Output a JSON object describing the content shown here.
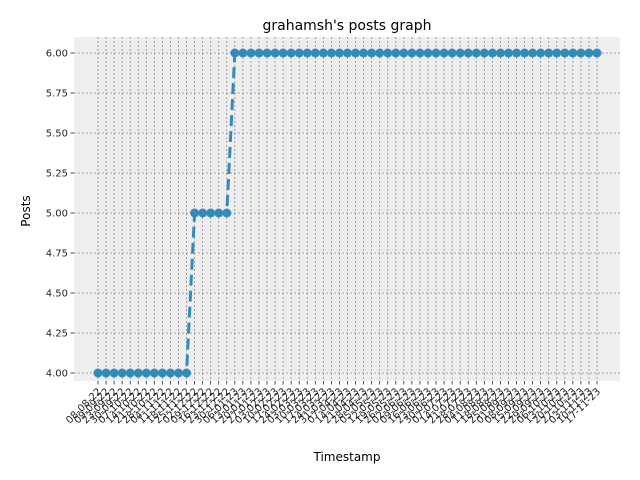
{
  "chart_data": {
    "type": "line",
    "title": "grahamsh's posts graph",
    "xlabel": "Timestamp",
    "ylabel": "Posts",
    "ylim": [
      3.95,
      6.1
    ],
    "yticks": [
      4.0,
      4.25,
      4.5,
      4.75,
      5.0,
      5.25,
      5.5,
      5.75,
      6.0
    ],
    "grid": true,
    "style": {
      "line_color": "#348abd",
      "background": "#eeeeee",
      "grid_color": "#8c8c8c",
      "line_style": "dashed",
      "marker": "circle"
    },
    "categories": [
      "08-08-22",
      "09-09-22",
      "23-09-22",
      "30-09-22",
      "07-10-22",
      "14-10-22",
      "21-10-22",
      "28-10-22",
      "04-11-22",
      "11-11-22",
      "18-11-22",
      "25-11-22",
      "02-12-22",
      "09-12-22",
      "16-12-22",
      "23-12-22",
      "30-12-22",
      "06-01-23",
      "13-01-23",
      "20-01-23",
      "27-01-23",
      "03-02-23",
      "10-02-23",
      "17-02-23",
      "24-02-23",
      "03-03-23",
      "10-03-23",
      "17-03-23",
      "24-03-23",
      "31-03-23",
      "07-04-23",
      "14-04-23",
      "21-04-23",
      "28-04-23",
      "05-05-23",
      "12-05-23",
      "19-05-23",
      "26-05-23",
      "02-06-23",
      "09-06-23",
      "16-06-23",
      "23-06-23",
      "30-06-23",
      "07-07-23",
      "14-07-23",
      "21-07-23",
      "28-07-23",
      "04-08-23",
      "11-08-23",
      "18-08-23",
      "25-08-23",
      "01-09-23",
      "08-09-23",
      "15-09-23",
      "22-09-23",
      "29-09-23",
      "06-10-23",
      "13-10-23",
      "20-10-23",
      "27-10-23",
      "03-11-23",
      "10-11-23",
      "17-11-23"
    ],
    "series": [
      {
        "values": [
          4,
          4,
          4,
          4,
          4,
          4,
          4,
          4,
          4,
          4,
          4,
          4,
          5,
          5,
          5,
          5,
          5,
          6,
          6,
          6,
          6,
          6,
          6,
          6,
          6,
          6,
          6,
          6,
          6,
          6,
          6,
          6,
          6,
          6,
          6,
          6,
          6,
          6,
          6,
          6,
          6,
          6,
          6,
          6,
          6,
          6,
          6,
          6,
          6,
          6,
          6,
          6,
          6,
          6,
          6,
          6,
          6,
          6,
          6,
          6,
          6,
          6,
          6
        ]
      }
    ]
  }
}
